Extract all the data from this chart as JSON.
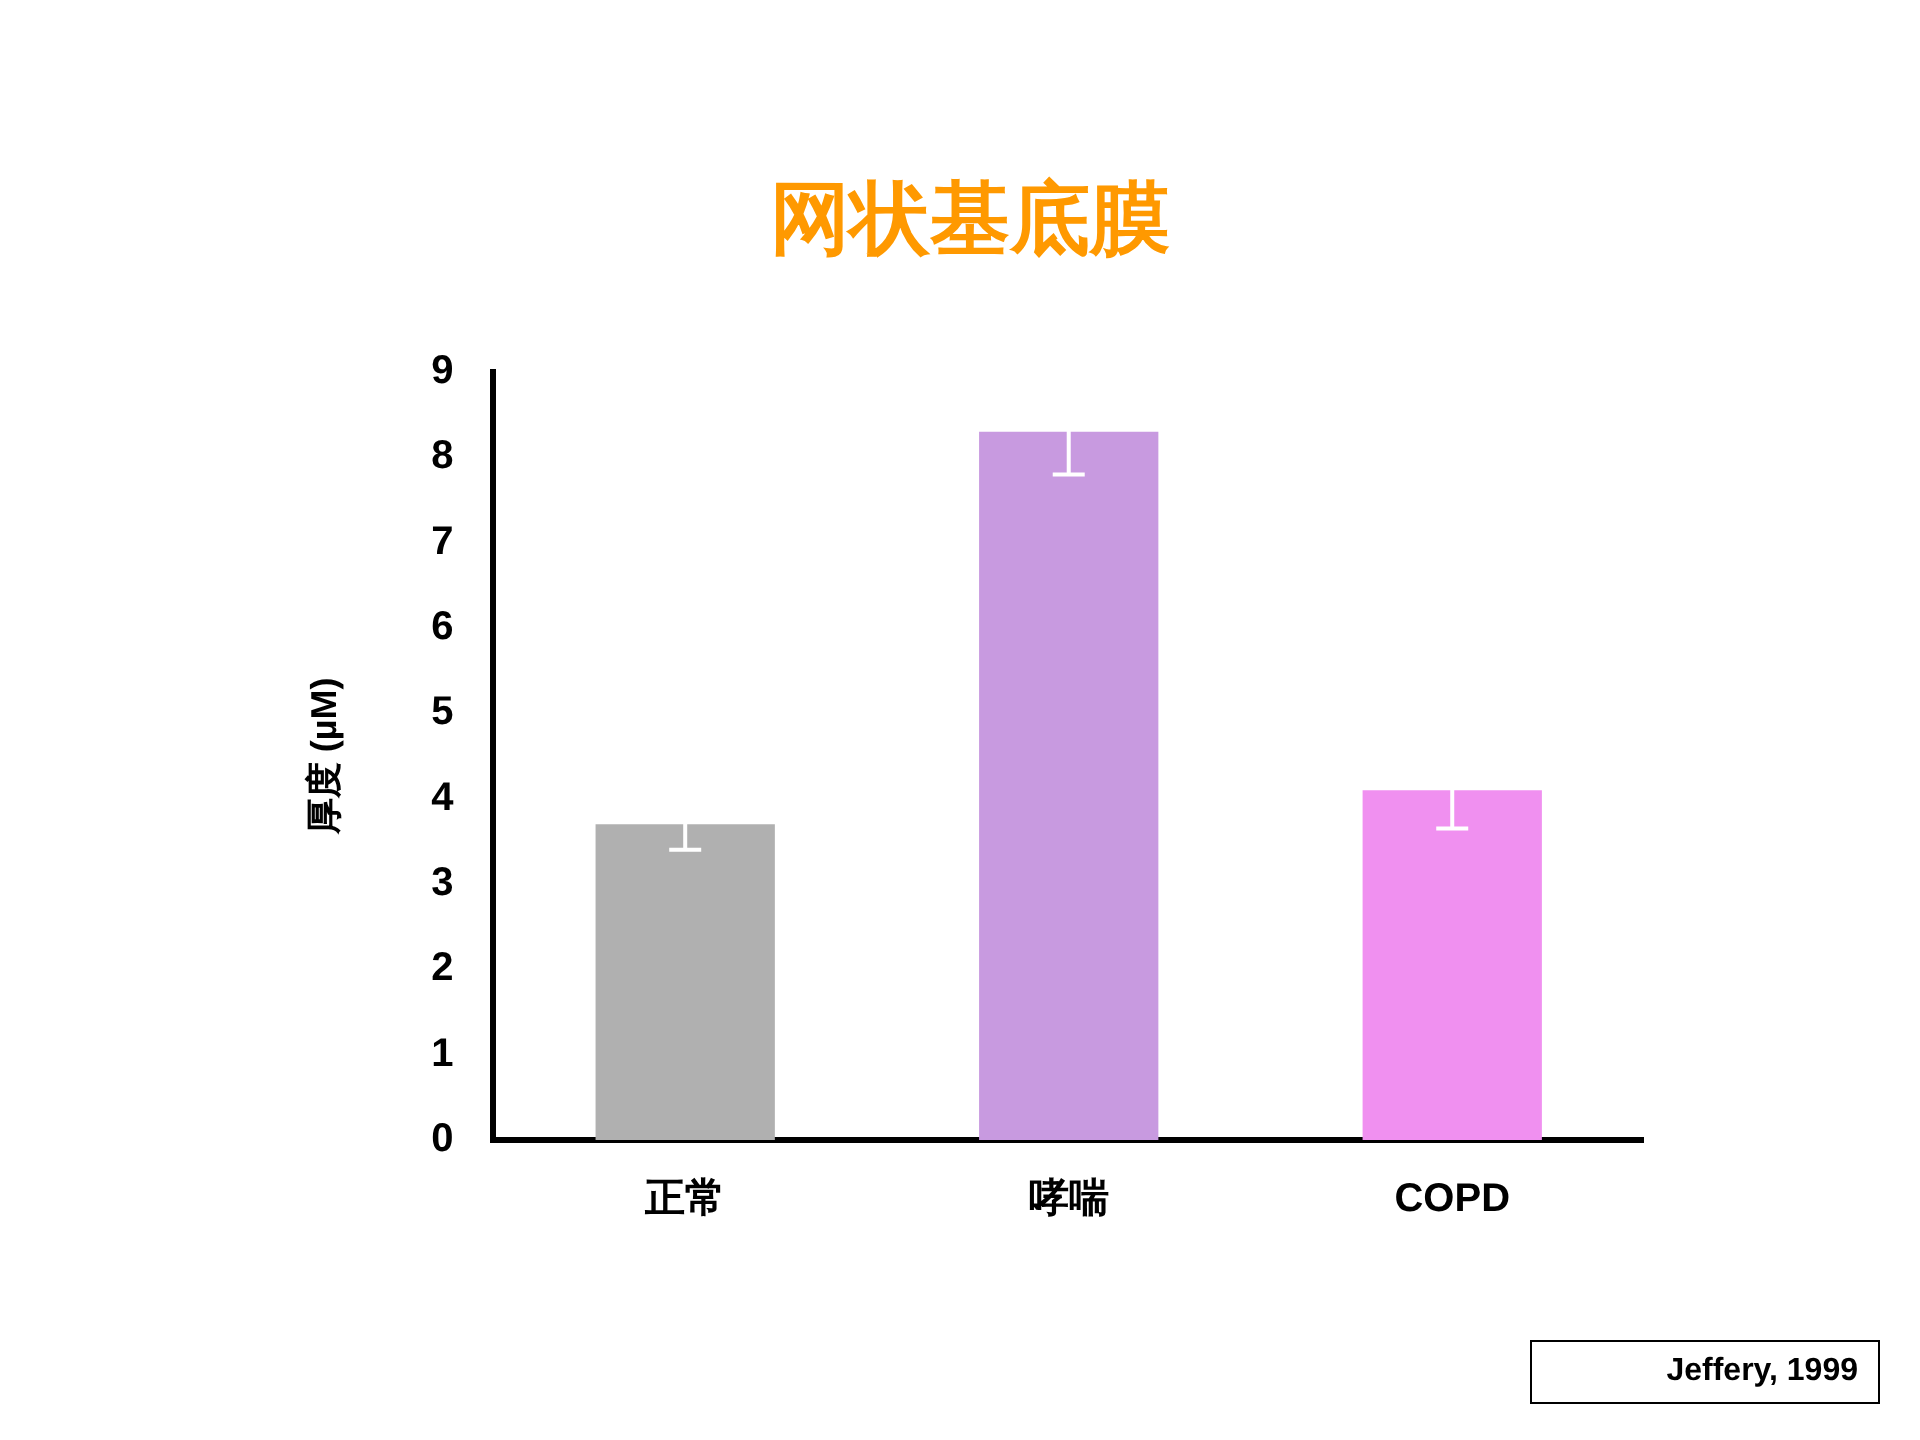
{
  "chart_data": {
    "type": "bar",
    "title": "网状基底膜",
    "ylabel": "厚度 (µM)",
    "categories": [
      "正常",
      "哮喘",
      "COPD"
    ],
    "values": [
      3.7,
      8.3,
      4.1
    ],
    "errors": [
      0.3,
      0.5,
      0.45
    ],
    "colors": [
      "#b0b0b0",
      "#c89ae0",
      "#f090f0"
    ],
    "ylim": [
      0,
      9
    ],
    "yticks": [
      0,
      1,
      2,
      3,
      4,
      5,
      6,
      7,
      8,
      9
    ],
    "grid": false,
    "legend": false,
    "annotations": [
      "Jeffery, 1999"
    ]
  }
}
